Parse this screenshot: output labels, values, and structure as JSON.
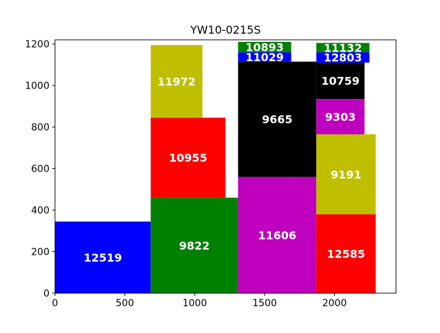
{
  "chart_data": {
    "type": "bar",
    "title": "YW10-0215S",
    "xlabel": "",
    "ylabel": "",
    "xlim": [
      0,
      2440
    ],
    "ylim": [
      0,
      1220
    ],
    "xticks": [
      0,
      500,
      1000,
      1500,
      2000
    ],
    "yticks": [
      0,
      200,
      400,
      600,
      800,
      1000,
      1200
    ],
    "grid": false,
    "rects": [
      {
        "label": "12519",
        "x": 0,
        "y": 0,
        "w": 685,
        "h": 345,
        "color": "#0000ff"
      },
      {
        "label": "9822",
        "x": 685,
        "y": 0,
        "w": 625,
        "h": 460,
        "color": "#008000"
      },
      {
        "label": "10955",
        "x": 685,
        "y": 460,
        "w": 535,
        "h": 385,
        "color": "#ff0000"
      },
      {
        "label": "11972",
        "x": 685,
        "y": 845,
        "w": 370,
        "h": 350,
        "color": "#bfbf00"
      },
      {
        "label": "11606",
        "x": 1310,
        "y": 0,
        "w": 560,
        "h": 560,
        "color": "#bf00bf"
      },
      {
        "label": "9665",
        "x": 1310,
        "y": 560,
        "w": 560,
        "h": 555,
        "color": "#000000"
      },
      {
        "label": "11029",
        "x": 1310,
        "y": 1115,
        "w": 380,
        "h": 45,
        "color": "#0000ff"
      },
      {
        "label": "10893",
        "x": 1310,
        "y": 1160,
        "w": 380,
        "h": 50,
        "color": "#008000"
      },
      {
        "label": "12585",
        "x": 1870,
        "y": 0,
        "w": 425,
        "h": 380,
        "color": "#ff0000"
      },
      {
        "label": "9191",
        "x": 1870,
        "y": 380,
        "w": 425,
        "h": 385,
        "color": "#bfbf00"
      },
      {
        "label": "9303",
        "x": 1870,
        "y": 765,
        "w": 345,
        "h": 170,
        "color": "#bf00bf"
      },
      {
        "label": "10759",
        "x": 1870,
        "y": 935,
        "w": 345,
        "h": 175,
        "color": "#000000"
      },
      {
        "label": "12803",
        "x": 1870,
        "y": 1110,
        "w": 380,
        "h": 50,
        "color": "#0000ff"
      },
      {
        "label": "11132",
        "x": 1870,
        "y": 1160,
        "w": 380,
        "h": 45,
        "color": "#008000"
      }
    ]
  }
}
